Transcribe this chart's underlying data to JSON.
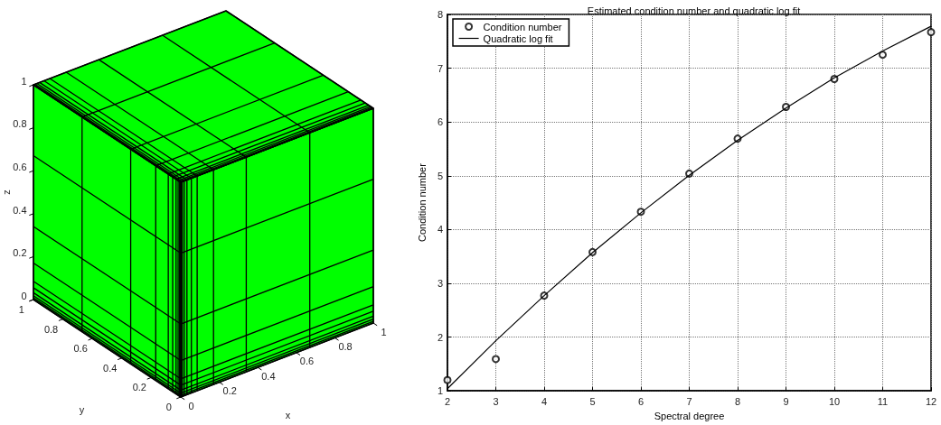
{
  "chart_data": {
    "type": "scatter",
    "title": "Estimated condition number and quadratic log fit",
    "xlabel": "Spectral degree",
    "ylabel": "Condition number",
    "x": [
      2,
      3,
      4,
      5,
      6,
      7,
      8,
      9,
      10,
      11,
      12
    ],
    "series": [
      {
        "name": "Condition number",
        "type": "scatter",
        "color": "#000000",
        "marker": "circle",
        "values": [
          1.2,
          1.59,
          2.77,
          3.58,
          4.33,
          5.04,
          5.69,
          6.28,
          6.8,
          7.25,
          7.67
        ]
      },
      {
        "name": "Quadratic log fit",
        "type": "line",
        "color": "#000000",
        "marker": "none",
        "line_style": "solid",
        "values": [
          1.04,
          1.93,
          2.77,
          3.57,
          4.31,
          5.01,
          5.66,
          6.26,
          6.82,
          7.32,
          7.78
        ]
      }
    ],
    "xlim": [
      2,
      12
    ],
    "xticks": [
      2,
      3,
      4,
      5,
      6,
      7,
      8,
      9,
      10,
      11,
      12
    ],
    "ylim": [
      1,
      8
    ],
    "yticks": [
      1,
      2,
      3,
      4,
      5,
      6,
      7,
      8
    ],
    "grid": true,
    "legend": "top left",
    "annotations": [
      "z",
      "1",
      "0.8",
      "0.6",
      "0.4",
      "0.2",
      "0",
      "y",
      "1",
      "0.8",
      "0.6",
      "0.4",
      "0.2",
      "0",
      "x",
      "0",
      "0.2",
      "0.4",
      "0.6",
      "0.8",
      "1"
    ]
  }
}
